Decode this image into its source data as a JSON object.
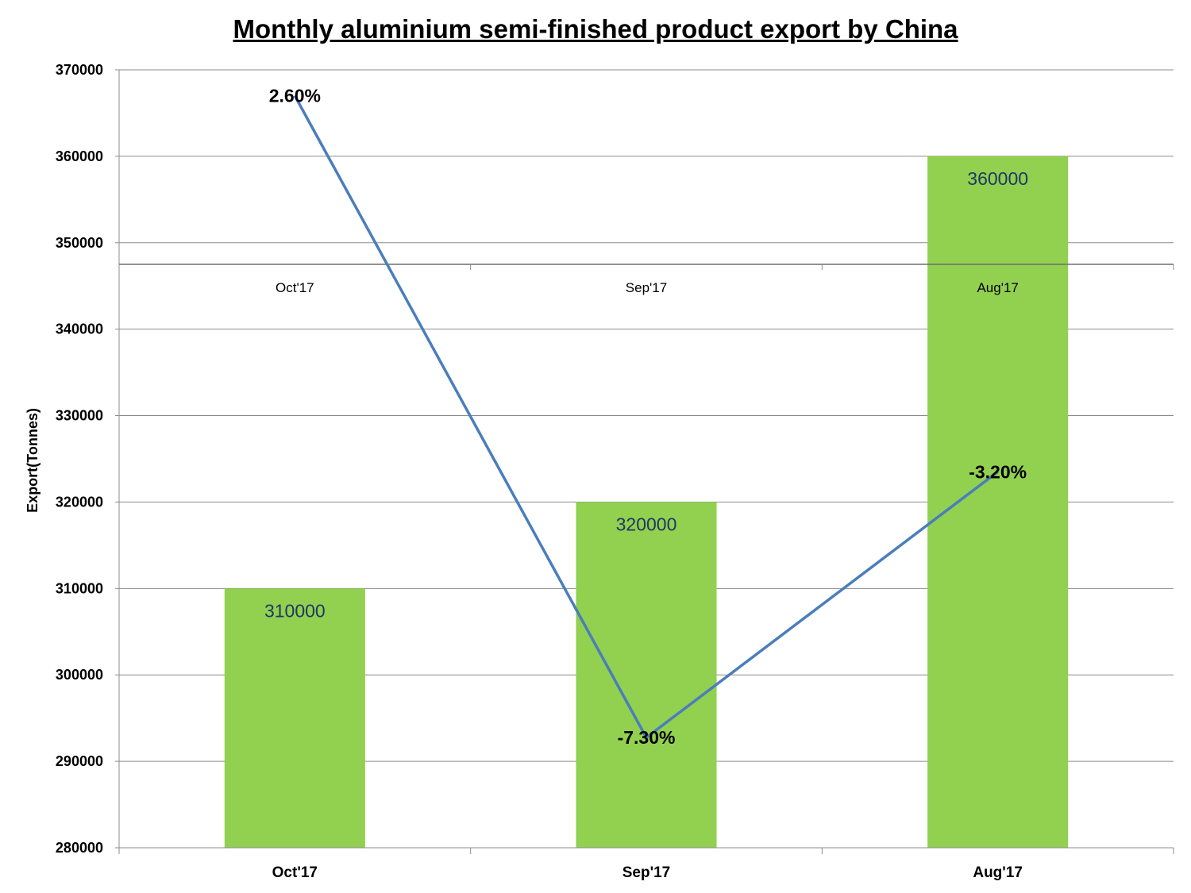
{
  "chart_data": {
    "type": "bar",
    "title": "Monthly aluminium semi-finished product export by China",
    "ylabel": "Export(Tonnes)",
    "xlabel": "",
    "categories": [
      "Oct'17",
      "Sep'17",
      "Aug'17"
    ],
    "ylim": [
      280000,
      370000
    ],
    "yticks": [
      280000,
      290000,
      300000,
      310000,
      320000,
      330000,
      340000,
      350000,
      360000,
      370000
    ],
    "grid": true,
    "series": [
      {
        "type": "bar",
        "values": [
          310000,
          320000,
          360000
        ],
        "data_labels": [
          "310000",
          "320000",
          "360000"
        ],
        "color": "#92d050"
      },
      {
        "type": "line",
        "values": [
          2.6,
          -7.3,
          -3.2
        ],
        "data_labels": [
          "2.60%",
          "-7.30%",
          "-3.20%"
        ],
        "color": "#4a7ebb",
        "secondary_axis": {
          "categories": [
            "Oct'17",
            "Sep'17",
            "Aug'17"
          ],
          "ylim": [
            -9,
            3
          ],
          "tick_labels_visible": false
        }
      }
    ]
  }
}
